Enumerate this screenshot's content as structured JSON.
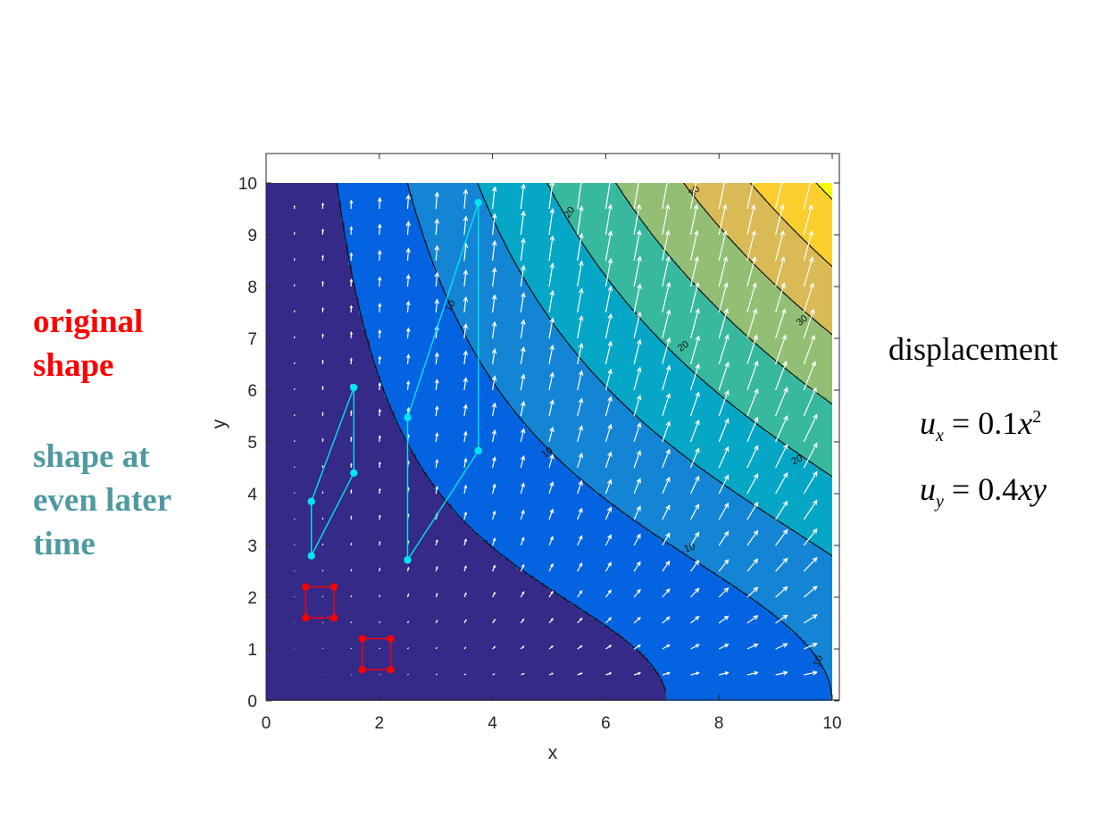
{
  "left_labels": {
    "original": [
      "original",
      "shape"
    ],
    "later": [
      "shape at",
      "even later",
      "time"
    ]
  },
  "equations": {
    "title": "displacement",
    "ux": {
      "lhs": "u",
      "sub": "x",
      "rhs_coef": "0.1",
      "rhs_var": "x",
      "rhs_exp": "2"
    },
    "uy": {
      "lhs": "u",
      "sub": "y",
      "rhs_coef": "0.4",
      "rhs_var": "xy"
    }
  },
  "colors": {
    "original_shape": "#ff0000",
    "later_shape": "#00e5ee",
    "later_label": "#4f9aa0",
    "colormap": [
      "#352a87",
      "#0363e1",
      "#1485d4",
      "#06a7c6",
      "#38b99e",
      "#92bf73",
      "#d9ba56",
      "#fcce2e",
      "#f9fb0e"
    ]
  },
  "chart_data": {
    "type": "contour",
    "field": "magnitude of displacement = sqrt((0.1x^2)^2 + (0.4xy)^2)",
    "xlabel": "x",
    "ylabel": "y",
    "xlim": [
      0,
      10
    ],
    "ylim": [
      0,
      10.6
    ],
    "xticks": [
      0,
      2,
      4,
      6,
      8,
      10
    ],
    "yticks": [
      0,
      1,
      2,
      3,
      4,
      5,
      6,
      7,
      8,
      9,
      10
    ],
    "contour_levels": [
      5,
      10,
      15,
      20,
      25,
      30,
      35,
      40
    ],
    "contour_labels": [
      "10",
      "10",
      "10",
      "10",
      "20",
      "20",
      "20",
      "30",
      "30"
    ],
    "quiver": {
      "x_step": 0.5,
      "y_step": 0.5,
      "x_range": [
        0.5,
        9.5
      ],
      "y_range": [
        0.5,
        9.5
      ]
    },
    "original_shapes": [
      [
        [
          0.7,
          1.6
        ],
        [
          1.2,
          1.6
        ],
        [
          1.2,
          2.2
        ],
        [
          0.7,
          2.2
        ]
      ],
      [
        [
          1.7,
          0.6
        ],
        [
          2.2,
          0.6
        ],
        [
          2.2,
          1.2
        ],
        [
          1.7,
          1.2
        ]
      ]
    ],
    "later_shapes": [
      [
        [
          0.8,
          2.8
        ],
        [
          1.55,
          4.4
        ],
        [
          1.55,
          6.05
        ],
        [
          0.8,
          3.85
        ]
      ],
      [
        [
          2.5,
          2.72
        ],
        [
          3.75,
          4.83
        ],
        [
          3.75,
          9.62
        ],
        [
          2.5,
          5.47
        ]
      ]
    ]
  }
}
